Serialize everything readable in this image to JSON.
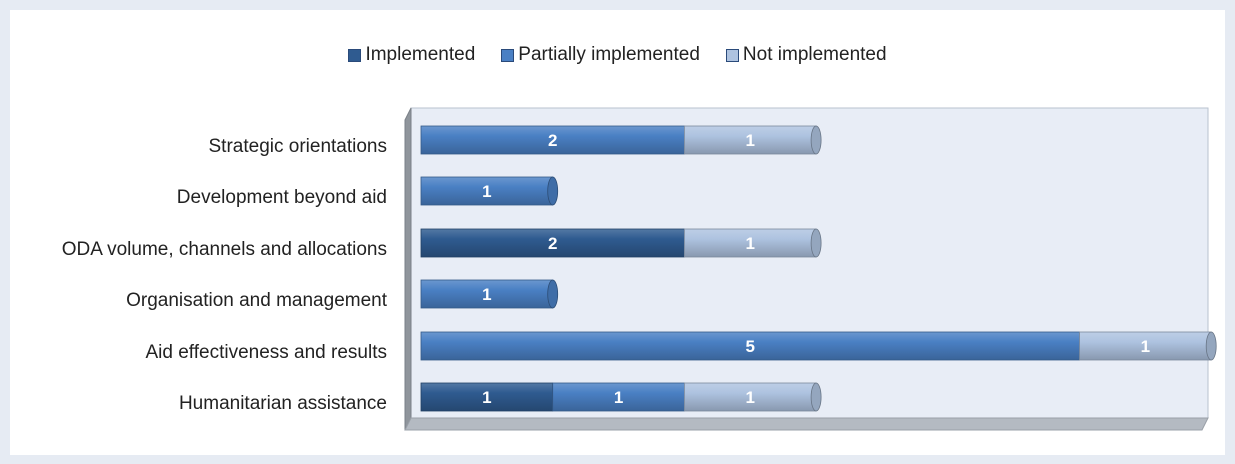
{
  "chart_data": {
    "type": "bar",
    "orientation": "horizontal",
    "stacked": true,
    "title": "",
    "xlabel": "",
    "ylabel": "",
    "categories": [
      "Strategic orientations",
      "Development beyond aid",
      "ODA volume, channels and allocations",
      "Organisation and management",
      "Aid effectiveness and results",
      "Humanitarian assistance"
    ],
    "series": [
      {
        "name": "Implemented",
        "values": [
          0,
          0,
          2,
          0,
          0,
          1
        ],
        "color": "#2f5b90"
      },
      {
        "name": "Partially implemented",
        "values": [
          2,
          1,
          0,
          1,
          5,
          1
        ],
        "color": "#4a80c4"
      },
      {
        "name": "Not implemented",
        "values": [
          1,
          0,
          1,
          0,
          1,
          1
        ],
        "color": "#aec3e0"
      }
    ],
    "xlim": [
      0,
      6
    ],
    "legend_position": "top-center",
    "grid": false
  }
}
